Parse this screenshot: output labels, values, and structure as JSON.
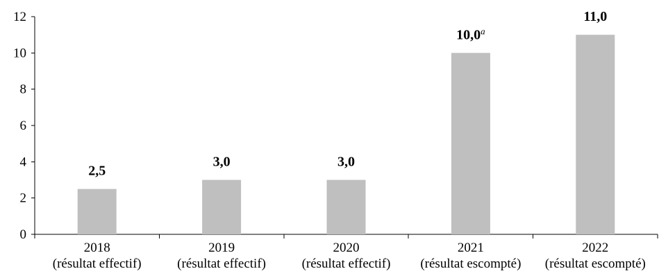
{
  "chart_data": {
    "type": "bar",
    "categories": [
      [
        "2018",
        "(résultat effectif)"
      ],
      [
        "2019",
        "(résultat effectif)"
      ],
      [
        "2020",
        "(résultat effectif)"
      ],
      [
        "2021",
        "(résultat escompté)"
      ],
      [
        "2022",
        "(résultat escompté)"
      ]
    ],
    "values": [
      2.5,
      3.0,
      3.0,
      10.0,
      11.0
    ],
    "value_labels": [
      "2,5",
      "3,0",
      "3,0",
      "10,0",
      "11,0"
    ],
    "value_label_notes": [
      "",
      "",
      "",
      "a",
      ""
    ],
    "yticks": [
      "0",
      "2",
      "4",
      "6",
      "8",
      "10",
      "12"
    ],
    "ylim": [
      0,
      12
    ],
    "bar_color": "#bfbfbf",
    "grid": false,
    "legend": "none"
  }
}
